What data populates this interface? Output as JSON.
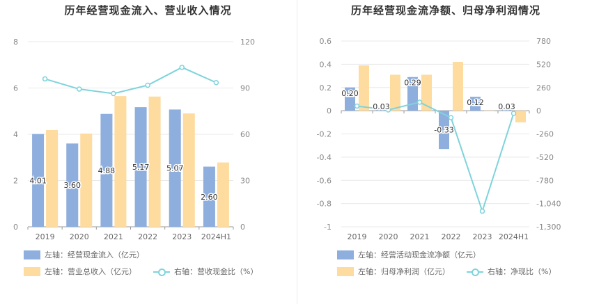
{
  "charts": [
    {
      "title": "历年经营现金流入、营业收入情况",
      "legend": {
        "bar1": "左轴：经营现金流入（亿元）",
        "bar2": "左轴：营业总收入（亿元）",
        "line": "右轴：营收现金比（%）"
      }
    },
    {
      "title": "历年经营现金流净额、归母净利润情况",
      "legend": {
        "bar1": "左轴：经营活动现金流净额（亿元）",
        "bar2": "左轴：归母净利润（亿元）",
        "line": "右轴：净现比（%）"
      }
    }
  ],
  "colors": {
    "bar1": "#8eaedd",
    "bar2": "#fedb9e",
    "line": "#7fd3dc"
  },
  "chart_data": [
    {
      "type": "bar",
      "title": "历年经营现金流入、营业收入情况",
      "categories": [
        "2019",
        "2020",
        "2021",
        "2022",
        "2023",
        "2024H1"
      ],
      "series": [
        {
          "name": "左轴：经营现金流入（亿元）",
          "axis": "left",
          "type": "bar",
          "values": [
            4.01,
            3.6,
            4.88,
            5.17,
            5.07,
            2.6
          ],
          "labels": [
            "4.01",
            "3.60",
            "4.88",
            "5.17",
            "5.07",
            "2.60"
          ]
        },
        {
          "name": "左轴：营业总收入（亿元）",
          "axis": "left",
          "type": "bar",
          "values": [
            4.18,
            4.03,
            5.65,
            5.63,
            4.9,
            2.78
          ]
        },
        {
          "name": "右轴：营收现金比（%）",
          "axis": "right",
          "type": "line",
          "values": [
            95.9,
            89.3,
            86.4,
            91.8,
            103.4,
            93.5
          ]
        }
      ],
      "left_axis": {
        "ylim": [
          0,
          8
        ],
        "ticks": [
          "0",
          "2",
          "4",
          "6",
          "8"
        ]
      },
      "right_axis": {
        "ylim": [
          0,
          120
        ],
        "ticks": [
          "0",
          "30",
          "60",
          "90",
          "120"
        ]
      },
      "legend_position": "bottom-left",
      "grid": true
    },
    {
      "type": "bar",
      "title": "历年经营现金流净额、归母净利润情况",
      "categories": [
        "2019",
        "2020",
        "2021",
        "2022",
        "2023",
        "2024H1"
      ],
      "series": [
        {
          "name": "左轴：经营活动现金流净额（亿元）",
          "axis": "left",
          "type": "bar",
          "values": [
            0.2,
            0.03,
            0.29,
            -0.33,
            0.12,
            0.03
          ],
          "labels": [
            "0.20",
            "0.03",
            "0.29",
            "-0.33",
            "0.12",
            "0.03"
          ]
        },
        {
          "name": "左轴：归母净利润（亿元）",
          "axis": "left",
          "type": "bar",
          "values": [
            0.39,
            0.31,
            0.31,
            0.42,
            0.0,
            -0.1
          ]
        },
        {
          "name": "右轴：净现比（%）",
          "axis": "right",
          "type": "line",
          "values": [
            52,
            9,
            95,
            -78,
            -1125,
            -30
          ]
        }
      ],
      "left_axis": {
        "ylim": [
          -1,
          0.6
        ],
        "ticks": [
          "-1",
          "-0.8",
          "-0.6",
          "-0.4",
          "-0.2",
          "0",
          "0.2",
          "0.4",
          "0.6"
        ]
      },
      "right_axis": {
        "ylim": [
          -1300,
          780
        ],
        "ticks": [
          "-1,300",
          "-1,040",
          "-780",
          "-520",
          "-260",
          "0",
          "260",
          "520",
          "780"
        ]
      },
      "legend_position": "bottom-left",
      "grid": true
    }
  ]
}
